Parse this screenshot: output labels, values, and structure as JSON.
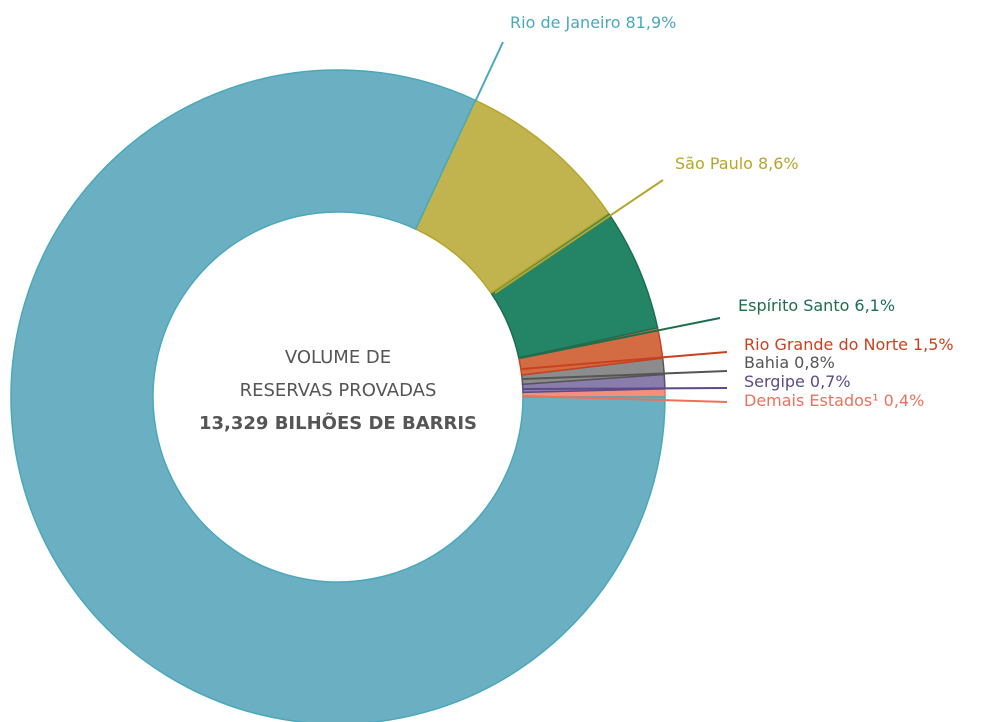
{
  "chart_data": {
    "type": "donut",
    "center_text": [
      "VOLUME DE",
      "RESERVAS PROVADAS",
      "13,329 BILHÕES DE BARRIS"
    ],
    "categories": [
      "Demais Estados¹",
      "Sergipe",
      "Bahia",
      "Rio Grande do Norte",
      "Espírito Santo",
      "São Paulo",
      "Rio de Janeiro"
    ],
    "values": [
      0.4,
      0.7,
      0.8,
      1.5,
      6.1,
      8.6,
      81.9
    ],
    "value_labels": [
      "0,4%",
      "0,7%",
      "0,8%",
      "1,5%",
      "6,1%",
      "8,6%",
      "81,9%"
    ],
    "colors": [
      "#f2907c",
      "#8b7dab",
      "#8c8c8c",
      "#d36c42",
      "#238566",
      "#c1b44f",
      "#6bb0c2"
    ],
    "label_colors": [
      "#e8735d",
      "#5b4a8a",
      "#555555",
      "#c9411f",
      "#1d6e4f",
      "#b5a52a",
      "#4aa8bb"
    ]
  }
}
